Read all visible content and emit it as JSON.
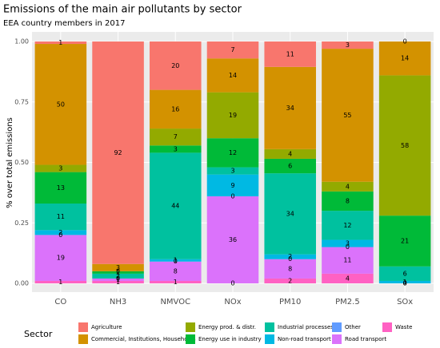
{
  "chart_data": {
    "type": "stacked_bar",
    "title": "Emissions of the main air pollutants by sector",
    "subtitle": "EEA country members in 2017",
    "y_label": "% over total emissions",
    "legend_title": "Sector",
    "categories": [
      "CO",
      "NH3",
      "NMVOC",
      "NOx",
      "PM10",
      "PM2.5",
      "SOx"
    ],
    "ylim": [
      0,
      1
    ],
    "yticks": [
      {
        "value": 0,
        "label": "0.00"
      },
      {
        "value": 0.25,
        "label": "0.25"
      },
      {
        "value": 0.5,
        "label": "0.50"
      },
      {
        "value": 0.75,
        "label": "0.75"
      },
      {
        "value": 1,
        "label": "1.00"
      }
    ],
    "grid": true,
    "series": [
      {
        "name": "Agriculture",
        "color": "#F8766D",
        "values": [
          0.01,
          0.92,
          0.2,
          0.07,
          0.105,
          0.03,
          0.0
        ],
        "value_labels": [
          "1",
          "92",
          "20",
          "7",
          "11",
          "3",
          "0"
        ]
      },
      {
        "name": "Commercial, Institutions, Households",
        "color": "#D39200",
        "values": [
          0.5,
          0.03,
          0.16,
          0.14,
          0.34,
          0.55,
          0.14
        ],
        "value_labels": [
          "50",
          "3",
          "16",
          "14",
          "34",
          "55",
          "14"
        ]
      },
      {
        "name": "Energy prod. & distr.",
        "color": "#93AA00",
        "values": [
          0.03,
          0.0,
          0.07,
          0.19,
          0.04,
          0.04,
          0.58
        ],
        "value_labels": [
          "3",
          "0",
          "7",
          "19",
          "4",
          "4",
          "58"
        ]
      },
      {
        "name": "Energy use in industry",
        "color": "#00BA38",
        "values": [
          0.13,
          0.01,
          0.03,
          0.12,
          0.06,
          0.08,
          0.21
        ],
        "value_labels": [
          "13",
          "1",
          "3",
          "12",
          "6",
          "8",
          "21"
        ]
      },
      {
        "name": "Industrial processes",
        "color": "#00C19F",
        "values": [
          0.11,
          0.02,
          0.44,
          0.03,
          0.335,
          0.12,
          0.06
        ],
        "value_labels": [
          "11",
          "2",
          "44",
          "3",
          "34",
          "12",
          "6"
        ]
      },
      {
        "name": "Non-road transport",
        "color": "#00B9E3",
        "values": [
          0.02,
          0.0,
          0.01,
          0.09,
          0.02,
          0.03,
          0.01
        ],
        "value_labels": [
          "2",
          "0",
          "1",
          "9",
          "2",
          "3",
          "1"
        ]
      },
      {
        "name": "Other",
        "color": "#619CFF",
        "values": [
          0.0,
          0.0,
          0.0,
          0.0,
          0.0,
          0.0,
          0.0
        ],
        "value_labels": [
          "0",
          "0",
          "0",
          "0",
          "0",
          "0",
          "0"
        ]
      },
      {
        "name": "Road transport",
        "color": "#DB72FB",
        "values": [
          0.19,
          0.01,
          0.08,
          0.36,
          0.08,
          0.11,
          0.0
        ],
        "value_labels": [
          "19",
          "1",
          "8",
          "36",
          "8",
          "11",
          "0"
        ]
      },
      {
        "name": "Waste",
        "color": "#FF61C3",
        "values": [
          0.01,
          0.01,
          0.01,
          0.0,
          0.02,
          0.04,
          0.0
        ],
        "value_labels": [
          "1",
          "1",
          "1",
          "0",
          "2",
          "4",
          "0"
        ]
      }
    ]
  }
}
